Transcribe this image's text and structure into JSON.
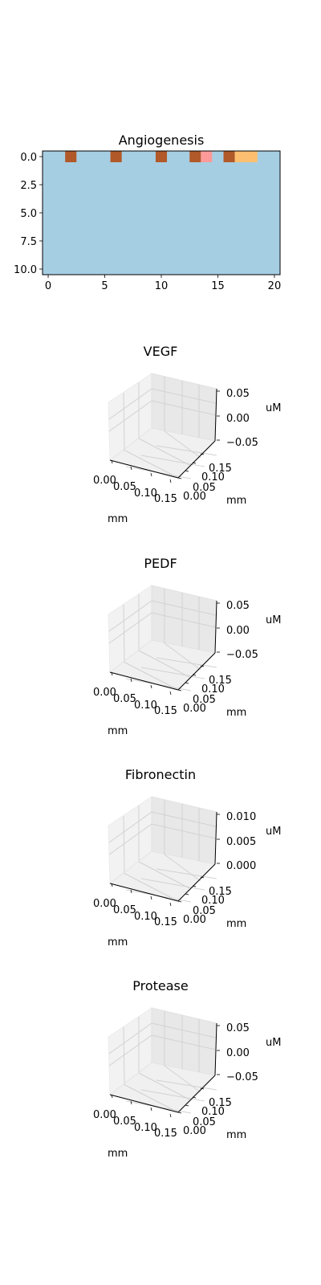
{
  "chart_data": [
    {
      "type": "heatmap",
      "title": "Angiogenesis",
      "xlim": [
        -0.5,
        20.5
      ],
      "ylim": [
        10.5,
        -0.5
      ],
      "x_ticks": [
        0,
        5,
        10,
        15,
        20
      ],
      "x_tick_labels": [
        "0",
        "5",
        "10",
        "15",
        "20"
      ],
      "y_ticks": [
        0,
        2.5,
        5,
        7.5,
        10
      ],
      "y_tick_labels": [
        "0.0",
        "2.5",
        "5.0",
        "7.5",
        "10.0"
      ],
      "background_color": "#a6cee3",
      "cells": [
        {
          "row": 0,
          "col": 2,
          "color": "#b15928"
        },
        {
          "row": 0,
          "col": 6,
          "color": "#b15928"
        },
        {
          "row": 0,
          "col": 10,
          "color": "#b15928"
        },
        {
          "row": 0,
          "col": 13,
          "color": "#b15928"
        },
        {
          "row": 0,
          "col": 14,
          "color": "#fb9a99"
        },
        {
          "row": 0,
          "col": 16,
          "color": "#b15928"
        },
        {
          "row": 0,
          "col": 17,
          "color": "#fdbf6f"
        },
        {
          "row": 0,
          "col": 18,
          "color": "#fdbf6f"
        }
      ]
    },
    {
      "type": "surface3d",
      "title": "VEGF",
      "xlabel": "mm",
      "ylabel": "mm",
      "zlabel": "uM",
      "x_tick_labels": [
        "0.00",
        "0.05",
        "0.10",
        "0.15"
      ],
      "y_tick_labels": [
        "0.00",
        "0.05",
        "0.10",
        "0.15"
      ],
      "z_tick_labels": [
        "0.05",
        "0.00",
        "−0.05"
      ],
      "zlim": [
        -0.05,
        0.05
      ]
    },
    {
      "type": "surface3d",
      "title": "PEDF",
      "xlabel": "mm",
      "ylabel": "mm",
      "zlabel": "uM",
      "x_tick_labels": [
        "0.00",
        "0.05",
        "0.10",
        "0.15"
      ],
      "y_tick_labels": [
        "0.00",
        "0.05",
        "0.10",
        "0.15"
      ],
      "z_tick_labels": [
        "0.05",
        "0.00",
        "−0.05"
      ],
      "zlim": [
        -0.05,
        0.05
      ]
    },
    {
      "type": "surface3d",
      "title": "Fibronectin",
      "xlabel": "mm",
      "ylabel": "mm",
      "zlabel": "uM",
      "x_tick_labels": [
        "0.00",
        "0.05",
        "0.10",
        "0.15"
      ],
      "y_tick_labels": [
        "0.00",
        "0.05",
        "0.10",
        "0.15"
      ],
      "z_tick_labels": [
        "0.010",
        "0.005",
        "0.000"
      ],
      "zlim": [
        0.0,
        0.01
      ]
    },
    {
      "type": "surface3d",
      "title": "Protease",
      "xlabel": "mm",
      "ylabel": "mm",
      "zlabel": "uM",
      "x_tick_labels": [
        "0.00",
        "0.05",
        "0.10",
        "0.15"
      ],
      "y_tick_labels": [
        "0.00",
        "0.05",
        "0.10",
        "0.15"
      ],
      "z_tick_labels": [
        "0.05",
        "0.00",
        "−0.05"
      ],
      "zlim": [
        -0.05,
        0.05
      ]
    }
  ]
}
